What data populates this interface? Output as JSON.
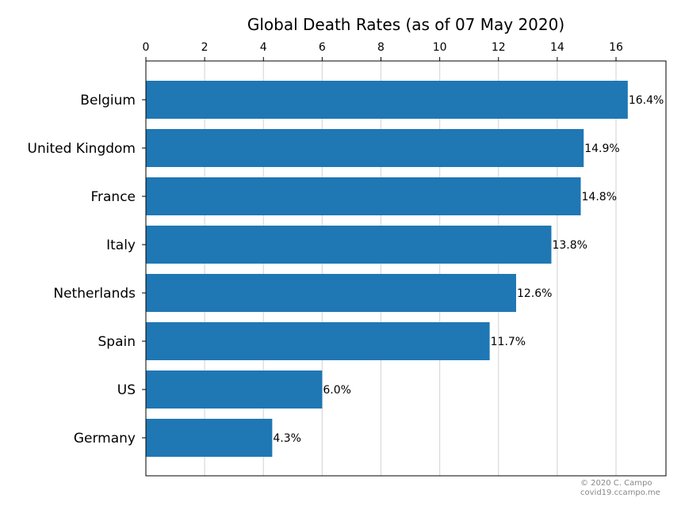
{
  "chart_data": {
    "type": "bar",
    "orientation": "horizontal",
    "title": "Global Death Rates (as of 07 May 2020)",
    "xlabel": "",
    "ylabel": "",
    "categories": [
      "Belgium",
      "United Kingdom",
      "France",
      "Italy",
      "Netherlands",
      "Spain",
      "US",
      "Germany"
    ],
    "values": [
      16.4,
      14.9,
      14.8,
      13.8,
      12.6,
      11.7,
      6.0,
      4.3
    ],
    "data_labels": [
      "16.4%",
      "14.9%",
      "14.8%",
      "13.8%",
      "12.6%",
      "11.7%",
      "6.0%",
      "4.3%"
    ],
    "xlim": [
      0,
      17.7
    ],
    "xticks": [
      0,
      2,
      4,
      6,
      8,
      10,
      12,
      14,
      16
    ],
    "x_axis_position": "top",
    "grid": "vertical",
    "bar_color": "#1f77b4"
  },
  "credit": {
    "line1": "© 2020 C. Campo",
    "line2": "covid19.ccampo.me"
  }
}
